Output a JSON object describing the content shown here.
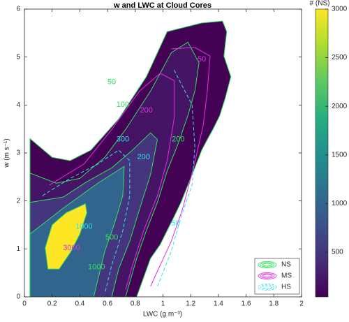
{
  "chart_data": {
    "type": "contour",
    "title": "w and LWC at Cloud Cores",
    "x_label": "LWC (g m⁻³)",
    "y_label": "w (m s⁻¹)",
    "xlim": [
      0,
      2
    ],
    "ylim": [
      0,
      6
    ],
    "xticks": [
      0,
      0.2,
      0.4,
      0.6,
      0.8,
      1,
      1.2,
      1.4,
      1.6,
      1.8,
      2
    ],
    "yticks": [
      0,
      1,
      2,
      3,
      4,
      5,
      6
    ],
    "colorbar": {
      "label": "# (NS)",
      "clim": [
        40,
        3000
      ],
      "ticks": [
        500,
        1000,
        1500,
        2000,
        2500,
        3000
      ]
    },
    "legend_position": "lower right",
    "series": [
      {
        "name": "NS",
        "color": "#2fe05a",
        "filled": true,
        "contours": [
          {
            "level": 50,
            "x": [
              0.04,
              0.2,
              0.33,
              0.48,
              0.68,
              0.88,
              1.03,
              1.28,
              1.43,
              1.46,
              1.44,
              1.49,
              1.45,
              1.41,
              1.36,
              1.32,
              1.28,
              1.23,
              1.18,
              1.13,
              1.08,
              1.03,
              0.98,
              0.91,
              0.81,
              0.04
            ],
            "y": [
              3.3,
              2.91,
              2.84,
              3.06,
              3.71,
              4.59,
              5.53,
              5.71,
              5.75,
              5.53,
              5.02,
              4.59,
              4.15,
              3.78,
              3.49,
              3.28,
              3.06,
              2.69,
              2.33,
              1.97,
              1.67,
              1.38,
              1.09,
              0.8,
              0,
              0
            ]
          },
          {
            "level": 200,
            "x": [
              0.04,
              0.23,
              0.4,
              0.58,
              0.73,
              0.91,
              1.06,
              1.18,
              1.26,
              1.23,
              1.18,
              1.11,
              1.03,
              0.96,
              0.88,
              0.81,
              0.73,
              0.04
            ],
            "y": [
              2.58,
              2.37,
              2.47,
              2.91,
              3.49,
              4.29,
              5.09,
              5.31,
              4.88,
              4.29,
              3.78,
              3.2,
              2.62,
              1.97,
              1.38,
              0.8,
              0,
              0
            ]
          },
          {
            "level": 500,
            "x": [
              0.04,
              0.28,
              0.45,
              0.63,
              0.78,
              0.91,
              0.96,
              0.91,
              0.83,
              0.76,
              0.68,
              0.63,
              0.04
            ],
            "y": [
              1.97,
              2.08,
              2.4,
              2.69,
              3.06,
              3.42,
              3.28,
              2.55,
              1.82,
              1.16,
              0.58,
              0,
              0
            ]
          },
          {
            "level": 1000,
            "x": [
              0.04,
              0.28,
              0.53,
              0.72,
              0.71,
              0.65,
              0.58,
              0.53,
              0.5,
              0.04
            ],
            "y": [
              1.31,
              1.85,
              2.37,
              2.72,
              2.11,
              1.53,
              0.95,
              0.36,
              0,
              0
            ]
          },
          {
            "level": 3000,
            "x": [
              0.15,
              0.2,
              0.3,
              0.44,
              0.45,
              0.4,
              0.33,
              0.25,
              0.17
            ],
            "y": [
              1.02,
              1.5,
              1.75,
              1.94,
              1.75,
              1.31,
              0.92,
              0.58,
              0.58
            ]
          }
        ],
        "labels": [
          {
            "text": "50",
            "x": 0.63,
            "y": 4.48
          },
          {
            "text": "100",
            "x": 0.71,
            "y": 4.0
          },
          {
            "text": "200",
            "x": 1.11,
            "y": 3.28
          },
          {
            "text": "500",
            "x": 0.63,
            "y": 1.24
          },
          {
            "text": "1000",
            "x": 0.52,
            "y": 0.62
          }
        ]
      },
      {
        "name": "MS",
        "color": "#e030e0",
        "filled": false,
        "contours": [
          {
            "level": 50,
            "x": [
              1.06,
              1.23,
              1.34,
              1.32,
              1.29,
              1.22,
              1.14,
              1.06,
              0.98,
              0.91
            ],
            "y": [
              5.17,
              5.2,
              5.02,
              4.29,
              3.57,
              2.69,
              1.82,
              1.16,
              0.66,
              0.22
            ]
          },
          {
            "level": 200,
            "x": [
              0.18,
              0.43,
              0.63,
              0.83,
              0.98,
              1.08,
              1.08,
              1.03,
              0.96,
              0.86,
              0.78,
              0.73
            ],
            "y": [
              2.33,
              2.77,
              3.49,
              4.29,
              4.66,
              4.51,
              3.71,
              2.84,
              2.11,
              1.38,
              0.66,
              0.15
            ]
          }
        ],
        "labels": [
          {
            "text": "200",
            "x": 0.88,
            "y": 3.89
          },
          {
            "text": "3000",
            "x": 0.34,
            "y": 1.02
          },
          {
            "text": "50",
            "x": 1.28,
            "y": 4.95
          }
        ]
      },
      {
        "name": "HS",
        "color": "#30e0f0",
        "filled": false,
        "contours": [
          {
            "level": 50,
            "x": [
              1.08,
              1.21,
              1.23,
              1.21,
              1.13,
              1.06,
              0.96
            ],
            "y": [
              4.73,
              4.0,
              3.13,
              2.33,
              1.67,
              0.95,
              0.22
            ]
          },
          {
            "level": 500,
            "x": [
              0.13,
              0.33,
              0.53,
              0.68,
              0.76,
              0.76,
              0.71,
              0.63,
              0.58
            ],
            "y": [
              2.11,
              2.47,
              2.77,
              3.06,
              2.84,
              2.11,
              1.38,
              0.66,
              0.07
            ]
          }
        ],
        "labels": [
          {
            "text": "200",
            "x": 0.86,
            "y": 2.91
          },
          {
            "text": "300",
            "x": 0.71,
            "y": 3.28
          },
          {
            "text": "1000",
            "x": 0.43,
            "y": 1.46
          },
          {
            "text": "50",
            "x": 1.09,
            "y": 1.53
          }
        ]
      }
    ]
  }
}
